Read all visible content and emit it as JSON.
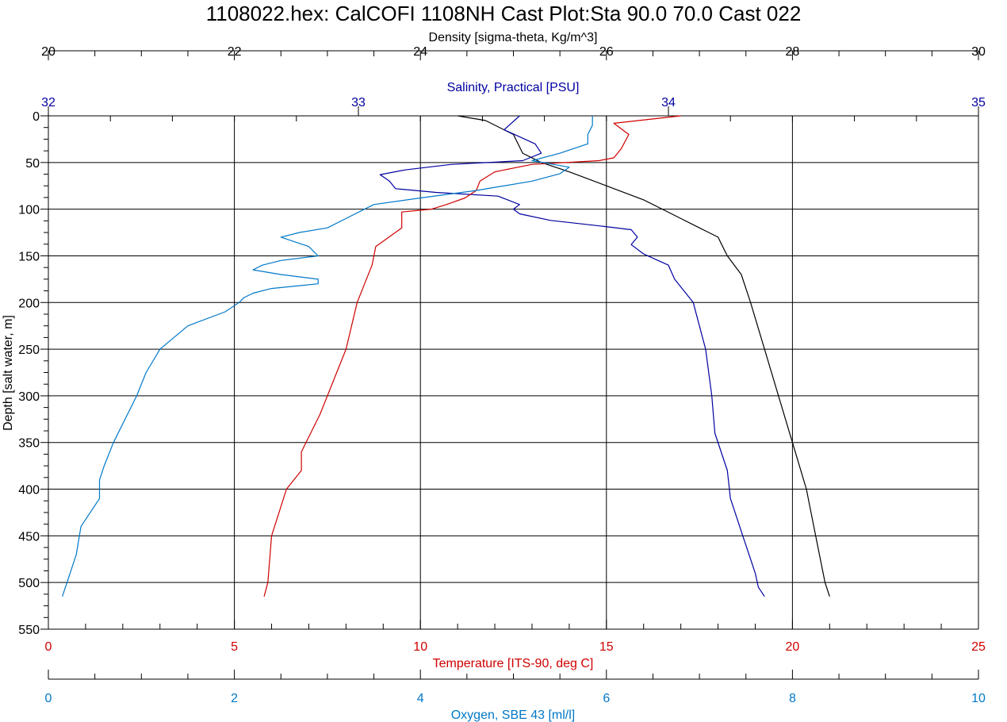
{
  "colors": {
    "density": "#000000",
    "salinity": "#0000a0",
    "temperature": "#d00000",
    "oxygen": "#0078c8",
    "grid": "#000000"
  },
  "chart_data": {
    "type": "line",
    "title": "1108022.hex: CalCOFI 1108NH Cast Plot:Sta 90.0 70.0 Cast 022",
    "grid": true,
    "y_axis": {
      "label": "Depth [salt water, m]",
      "range": [
        0,
        550
      ],
      "inverted": true,
      "ticks": [
        "0",
        "50",
        "100",
        "150",
        "200",
        "250",
        "300",
        "350",
        "400",
        "450",
        "500",
        "550"
      ]
    },
    "x_axes": [
      {
        "key": "density",
        "label": "Density [sigma-theta, Kg/m^3]",
        "position": "top",
        "range": [
          20,
          30
        ],
        "ticks": [
          "20",
          "22",
          "24",
          "26",
          "28",
          "30"
        ]
      },
      {
        "key": "salinity",
        "label": "Salinity, Practical [PSU]",
        "position": "top",
        "range": [
          32,
          35
        ],
        "ticks": [
          "32",
          "33",
          "34",
          "35"
        ]
      },
      {
        "key": "temperature",
        "label": "Temperature [ITS-90, deg C]",
        "position": "bottom",
        "range": [
          0,
          25
        ],
        "ticks": [
          "0",
          "5",
          "10",
          "15",
          "20",
          "25"
        ]
      },
      {
        "key": "oxygen",
        "label": "Oxygen, SBE 43 [ml/l]",
        "position": "bottom",
        "range": [
          0,
          10
        ],
        "ticks": [
          "0",
          "2",
          "4",
          "6",
          "8",
          "10"
        ]
      }
    ],
    "series": [
      {
        "key": "density",
        "points": [
          [
            0,
            24.4
          ],
          [
            5,
            24.7
          ],
          [
            20,
            25.0
          ],
          [
            40,
            25.1
          ],
          [
            50,
            25.3
          ],
          [
            60,
            25.6
          ],
          [
            75,
            26.0
          ],
          [
            90,
            26.4
          ],
          [
            100,
            26.6
          ],
          [
            110,
            26.8
          ],
          [
            120,
            27.0
          ],
          [
            130,
            27.2
          ],
          [
            140,
            27.25
          ],
          [
            150,
            27.3
          ],
          [
            170,
            27.45
          ],
          [
            200,
            27.55
          ],
          [
            250,
            27.7
          ],
          [
            300,
            27.85
          ],
          [
            350,
            28.0
          ],
          [
            400,
            28.15
          ],
          [
            450,
            28.25
          ],
          [
            500,
            28.35
          ],
          [
            515,
            28.4
          ]
        ]
      },
      {
        "key": "salinity",
        "points": [
          [
            0,
            33.52
          ],
          [
            15,
            33.47
          ],
          [
            30,
            33.57
          ],
          [
            40,
            33.59
          ],
          [
            48,
            33.53
          ],
          [
            52,
            33.3
          ],
          [
            58,
            33.15
          ],
          [
            63,
            33.07
          ],
          [
            70,
            33.1
          ],
          [
            78,
            33.12
          ],
          [
            82,
            33.25
          ],
          [
            86,
            33.45
          ],
          [
            95,
            33.52
          ],
          [
            100,
            33.5
          ],
          [
            105,
            33.52
          ],
          [
            112,
            33.62
          ],
          [
            118,
            33.78
          ],
          [
            122,
            33.88
          ],
          [
            130,
            33.9
          ],
          [
            138,
            33.88
          ],
          [
            148,
            33.92
          ],
          [
            160,
            34.0
          ],
          [
            175,
            34.02
          ],
          [
            200,
            34.08
          ],
          [
            250,
            34.12
          ],
          [
            300,
            34.14
          ],
          [
            340,
            34.15
          ],
          [
            380,
            34.19
          ],
          [
            410,
            34.2
          ],
          [
            450,
            34.24
          ],
          [
            490,
            34.28
          ],
          [
            505,
            34.29
          ],
          [
            515,
            34.31
          ]
        ]
      },
      {
        "key": "temperature",
        "points": [
          [
            0,
            17.0
          ],
          [
            8,
            15.2
          ],
          [
            20,
            15.6
          ],
          [
            35,
            15.4
          ],
          [
            45,
            15.2
          ],
          [
            48,
            14.8
          ],
          [
            52,
            13.0
          ],
          [
            60,
            12.0
          ],
          [
            70,
            11.6
          ],
          [
            80,
            11.5
          ],
          [
            88,
            11.2
          ],
          [
            95,
            10.7
          ],
          [
            100,
            10.3
          ],
          [
            103,
            9.5
          ],
          [
            110,
            9.5
          ],
          [
            120,
            9.5
          ],
          [
            140,
            8.8
          ],
          [
            160,
            8.7
          ],
          [
            180,
            8.5
          ],
          [
            200,
            8.3
          ],
          [
            250,
            8.0
          ],
          [
            300,
            7.5
          ],
          [
            320,
            7.3
          ],
          [
            360,
            6.8
          ],
          [
            380,
            6.8
          ],
          [
            400,
            6.4
          ],
          [
            450,
            6.0
          ],
          [
            500,
            5.9
          ],
          [
            515,
            5.8
          ]
        ]
      },
      {
        "key": "oxygen",
        "points": [
          [
            0,
            5.85
          ],
          [
            10,
            5.85
          ],
          [
            20,
            5.8
          ],
          [
            30,
            5.8
          ],
          [
            40,
            5.5
          ],
          [
            48,
            5.2
          ],
          [
            55,
            5.6
          ],
          [
            62,
            5.5
          ],
          [
            70,
            5.2
          ],
          [
            80,
            4.6
          ],
          [
            88,
            4.0
          ],
          [
            95,
            3.5
          ],
          [
            100,
            3.4
          ],
          [
            110,
            3.2
          ],
          [
            120,
            3.0
          ],
          [
            125,
            2.7
          ],
          [
            130,
            2.5
          ],
          [
            140,
            2.8
          ],
          [
            150,
            2.9
          ],
          [
            155,
            2.5
          ],
          [
            160,
            2.3
          ],
          [
            165,
            2.2
          ],
          [
            170,
            2.5
          ],
          [
            175,
            2.9
          ],
          [
            180,
            2.9
          ],
          [
            185,
            2.4
          ],
          [
            190,
            2.2
          ],
          [
            195,
            2.1
          ],
          [
            200,
            2.05
          ],
          [
            210,
            1.9
          ],
          [
            225,
            1.5
          ],
          [
            250,
            1.2
          ],
          [
            275,
            1.05
          ],
          [
            300,
            0.95
          ],
          [
            320,
            0.85
          ],
          [
            350,
            0.7
          ],
          [
            375,
            0.6
          ],
          [
            390,
            0.55
          ],
          [
            410,
            0.55
          ],
          [
            440,
            0.35
          ],
          [
            470,
            0.3
          ],
          [
            500,
            0.2
          ],
          [
            515,
            0.15
          ]
        ]
      }
    ]
  }
}
